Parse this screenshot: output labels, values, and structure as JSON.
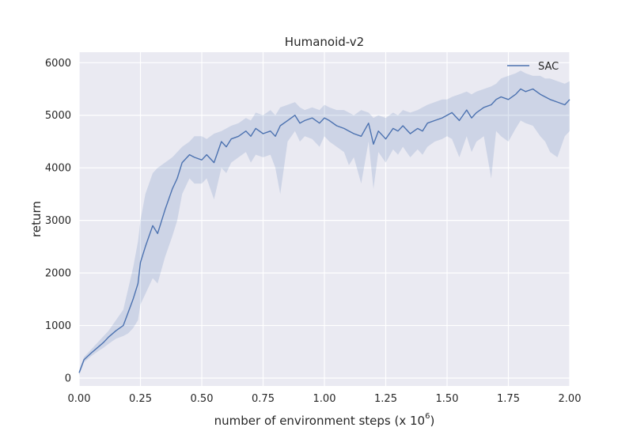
{
  "chart_data": {
    "type": "line",
    "title": "Humanoid-v2",
    "xlabel": "number of environment steps (x 10",
    "xlabel_exponent": "6",
    "xlabel_suffix": ")",
    "ylabel": "return",
    "xlim": [
      0.0,
      2.0
    ],
    "ylim": [
      -150,
      6200
    ],
    "xticks": [
      0.0,
      0.25,
      0.5,
      0.75,
      1.0,
      1.25,
      1.5,
      1.75,
      2.0
    ],
    "xtick_labels": [
      "0.00",
      "0.25",
      "0.50",
      "0.75",
      "1.00",
      "1.25",
      "1.50",
      "1.75",
      "2.00"
    ],
    "yticks": [
      0,
      1000,
      2000,
      3000,
      4000,
      5000,
      6000
    ],
    "ytick_labels": [
      "0",
      "1000",
      "2000",
      "3000",
      "4000",
      "5000",
      "6000"
    ],
    "grid": true,
    "legend_position": "top-right",
    "colors": {
      "line": "#4c72b0",
      "band": "#4c72b0",
      "background": "#eaeaf2",
      "grid": "#ffffff"
    },
    "series": [
      {
        "name": "SAC",
        "x": [
          0.0,
          0.02,
          0.05,
          0.08,
          0.1,
          0.12,
          0.15,
          0.18,
          0.2,
          0.22,
          0.24,
          0.25,
          0.27,
          0.3,
          0.32,
          0.35,
          0.38,
          0.4,
          0.42,
          0.45,
          0.47,
          0.5,
          0.52,
          0.55,
          0.58,
          0.6,
          0.62,
          0.65,
          0.68,
          0.7,
          0.72,
          0.75,
          0.78,
          0.8,
          0.82,
          0.85,
          0.88,
          0.9,
          0.92,
          0.95,
          0.98,
          1.0,
          1.02,
          1.05,
          1.08,
          1.1,
          1.12,
          1.15,
          1.18,
          1.2,
          1.22,
          1.25,
          1.28,
          1.3,
          1.32,
          1.35,
          1.38,
          1.4,
          1.42,
          1.45,
          1.48,
          1.5,
          1.52,
          1.55,
          1.58,
          1.6,
          1.62,
          1.65,
          1.68,
          1.7,
          1.72,
          1.75,
          1.78,
          1.8,
          1.82,
          1.85,
          1.88,
          1.9,
          1.92,
          1.95,
          1.98,
          2.0
        ],
        "y": [
          100,
          350,
          480,
          600,
          680,
          780,
          900,
          1000,
          1250,
          1500,
          1800,
          2200,
          2500,
          2900,
          2750,
          3200,
          3600,
          3800,
          4100,
          4250,
          4200,
          4150,
          4250,
          4100,
          4500,
          4400,
          4550,
          4600,
          4700,
          4600,
          4750,
          4650,
          4700,
          4600,
          4800,
          4900,
          5000,
          4850,
          4900,
          4950,
          4850,
          4950,
          4900,
          4800,
          4750,
          4700,
          4650,
          4600,
          4850,
          4450,
          4700,
          4550,
          4750,
          4700,
          4800,
          4650,
          4750,
          4700,
          4850,
          4900,
          4950,
          5000,
          5050,
          4900,
          5100,
          4950,
          5050,
          5150,
          5200,
          5300,
          5350,
          5300,
          5400,
          5500,
          5450,
          5500,
          5400,
          5350,
          5300,
          5250,
          5200,
          5300
        ],
        "upper": [
          150,
          400,
          550,
          700,
          800,
          900,
          1100,
          1300,
          1700,
          2100,
          2600,
          3000,
          3500,
          3900,
          4000,
          4100,
          4200,
          4300,
          4400,
          4500,
          4600,
          4600,
          4550,
          4650,
          4700,
          4750,
          4800,
          4850,
          4950,
          4900,
          5050,
          5000,
          5100,
          5000,
          5150,
          5200,
          5250,
          5150,
          5100,
          5150,
          5100,
          5200,
          5150,
          5100,
          5100,
          5050,
          5000,
          5100,
          5050,
          4950,
          5000,
          4950,
          5050,
          5000,
          5100,
          5050,
          5100,
          5150,
          5200,
          5250,
          5300,
          5300,
          5350,
          5400,
          5450,
          5400,
          5450,
          5500,
          5550,
          5600,
          5700,
          5750,
          5800,
          5850,
          5800,
          5750,
          5750,
          5700,
          5700,
          5650,
          5600,
          5650
        ],
        "lower": [
          50,
          300,
          420,
          520,
          580,
          650,
          750,
          800,
          850,
          950,
          1100,
          1400,
          1600,
          1900,
          1800,
          2300,
          2700,
          3000,
          3500,
          3800,
          3700,
          3700,
          3800,
          3400,
          4000,
          3900,
          4100,
          4200,
          4300,
          4100,
          4250,
          4200,
          4250,
          4000,
          3500,
          4500,
          4700,
          4500,
          4600,
          4550,
          4400,
          4600,
          4500,
          4400,
          4300,
          4050,
          4200,
          3700,
          4500,
          3600,
          4300,
          4100,
          4350,
          4250,
          4400,
          4200,
          4350,
          4250,
          4400,
          4500,
          4550,
          4600,
          4550,
          4200,
          4600,
          4300,
          4500,
          4600,
          3800,
          4700,
          4600,
          4500,
          4750,
          4900,
          4850,
          4800,
          4600,
          4500,
          4300,
          4200,
          4600,
          4700
        ]
      }
    ]
  }
}
